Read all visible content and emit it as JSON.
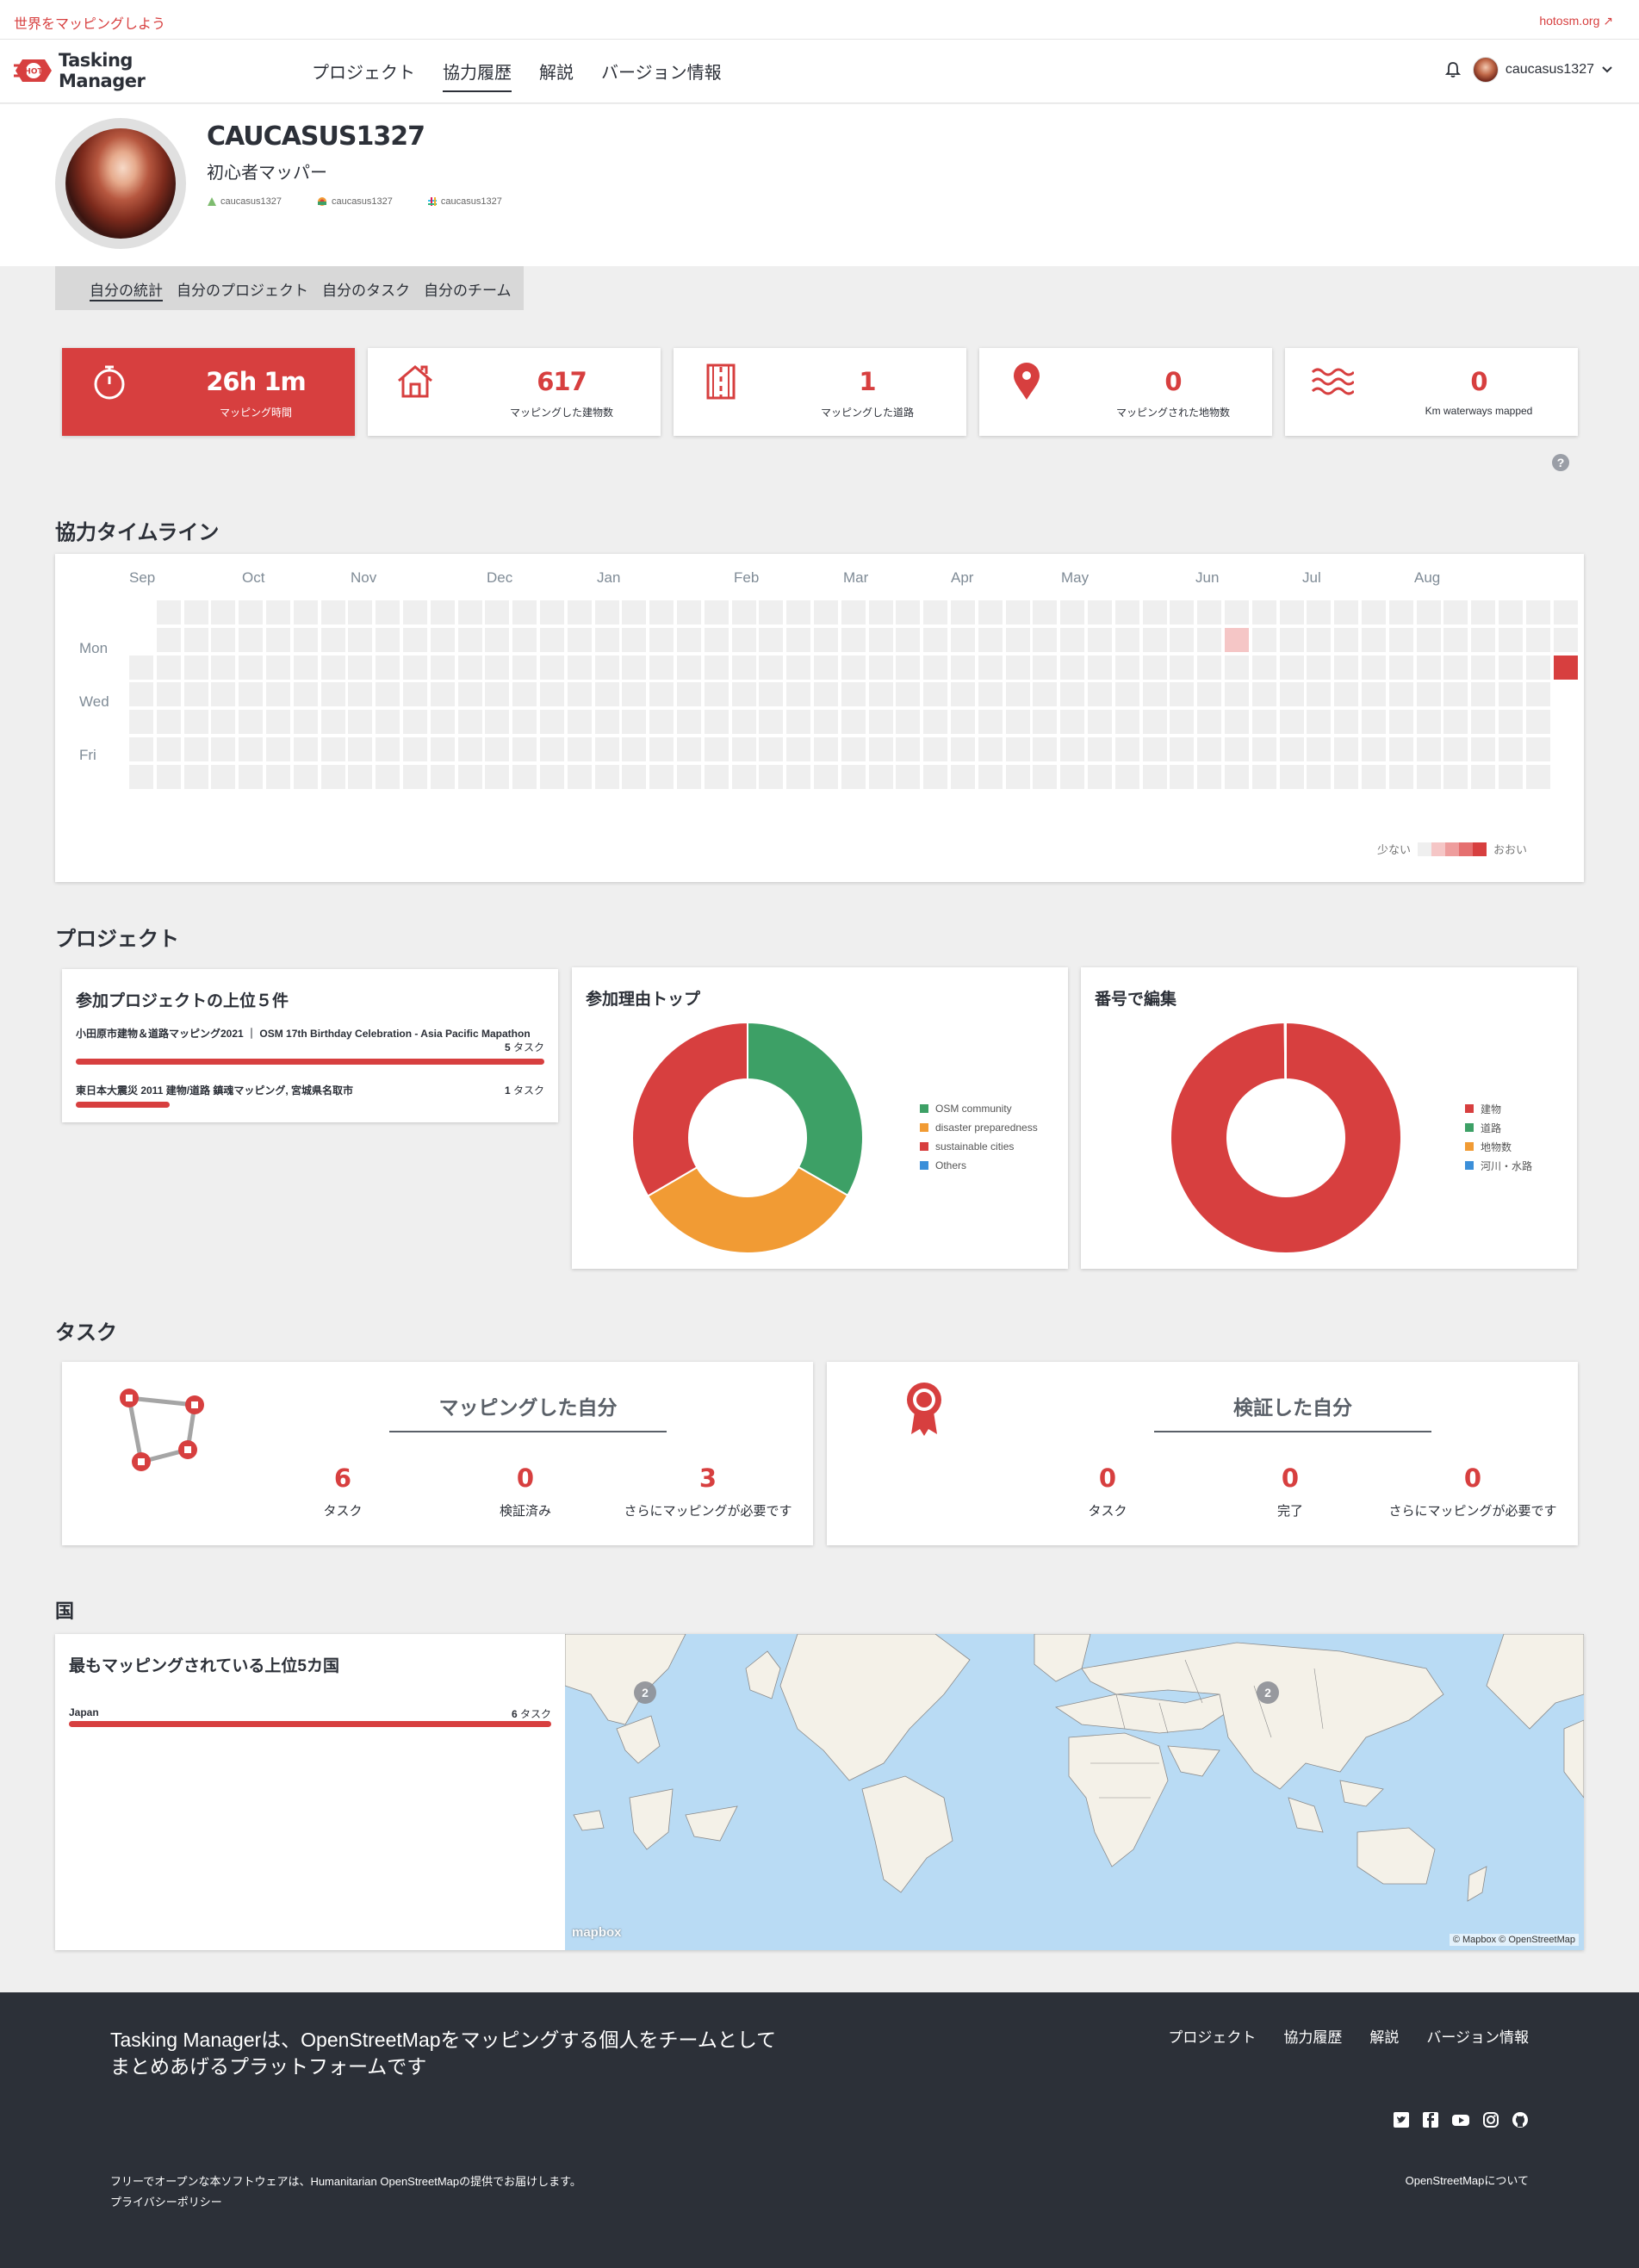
{
  "topbar": {
    "left_link": "世界をマッピングしよう",
    "right_link": "hotosm.org"
  },
  "nav": {
    "logo_text": "Tasking Manager",
    "logo_badge": "HOT",
    "menu": [
      "プロジェクト",
      "協力履歴",
      "解説",
      "バージョン情報"
    ],
    "active_menu": "協力履歴",
    "username": "caucasus1327"
  },
  "profile": {
    "name": "CAUCASUS1327",
    "level": "初心者マッパー",
    "links": [
      "caucasus1327",
      "caucasus1327",
      "caucasus1327"
    ]
  },
  "subtabs": [
    "自分の統計",
    "自分のプロジェクト",
    "自分のタスク",
    "自分のチーム"
  ],
  "stats": [
    {
      "value": "26h 1m",
      "label": "マッピング時間",
      "icon": "stopwatch-icon"
    },
    {
      "value": "617",
      "label": "マッピングした建物数",
      "icon": "house-icon"
    },
    {
      "value": "1",
      "label": "マッピングした道路",
      "icon": "road-icon"
    },
    {
      "value": "0",
      "label": "マッピングされた地物数",
      "icon": "map-pin-icon"
    },
    {
      "value": "0",
      "label": "Km waterways mapped",
      "icon": "waves-icon"
    }
  ],
  "help": "?",
  "timeline": {
    "title": "協力タイムライン",
    "months": [
      "Sep",
      "Oct",
      "Nov",
      "Dec",
      "Jan",
      "Feb",
      "Mar",
      "Apr",
      "May",
      "Jun",
      "Jul",
      "Aug"
    ],
    "days": [
      "Mon",
      "Wed",
      "Fri"
    ],
    "legend_less": "少ない",
    "legend_more": "おおい",
    "colors": [
      "#efefef",
      "#f5c6c6",
      "#ee9d9d",
      "#e56f6f",
      "#d73f3f"
    ]
  },
  "projects": {
    "title": "プロジェクト",
    "top5_title": "参加プロジェクトの上位５件",
    "top5": [
      {
        "name": "小田原市建物＆道路マッピング2021 ｜ OSM 17th Birthday Celebration - Asia Pacific Mapathon",
        "count": "5",
        "unit": "タスク",
        "fraction": 1.0
      },
      {
        "name": "東日本大震災 2011 建物/道路 鎮魂マッピング, 宮城県名取市",
        "count": "1",
        "unit": "タスク",
        "fraction": 0.2
      }
    ],
    "reasons_title": "参加理由トップ",
    "reasons": [
      {
        "name": "OSM community",
        "value": 33.3,
        "color": "#3da066"
      },
      {
        "name": "disaster preparedness",
        "value": 33.3,
        "color": "#f19b34"
      },
      {
        "name": "sustainable cities",
        "value": 33.4,
        "color": "#d73f3f"
      },
      {
        "name": "Others",
        "value": 0,
        "color": "#3b8fd9"
      }
    ],
    "edits_title": "番号で編集",
    "edits": [
      {
        "name": "建物",
        "value": 617,
        "color": "#d73f3f"
      },
      {
        "name": "道路",
        "value": 1,
        "color": "#3da066"
      },
      {
        "name": "地物数",
        "value": 0,
        "color": "#f19b34"
      },
      {
        "name": "河川・水路",
        "value": 0,
        "color": "#3b8fd9"
      }
    ]
  },
  "tasks": {
    "title": "タスク",
    "mapped": {
      "title": "マッピングした自分",
      "stats": [
        {
          "value": "6",
          "label": "タスク"
        },
        {
          "value": "0",
          "label": "検証済み"
        },
        {
          "value": "3",
          "label": "さらにマッピングが必要です"
        }
      ]
    },
    "validated": {
      "title": "検証した自分",
      "stats": [
        {
          "value": "0",
          "label": "タスク"
        },
        {
          "value": "0",
          "label": "完了"
        },
        {
          "value": "0",
          "label": "さらにマッピングが必要です"
        }
      ]
    }
  },
  "countries": {
    "title": "国",
    "card_title": "最もマッピングされている上位5カ国",
    "list": [
      {
        "name": "Japan",
        "count": "6",
        "unit": "タスク",
        "fraction": 1.0
      }
    ],
    "map_markers": [
      "2",
      "2"
    ],
    "map_logo": "mapbox",
    "map_attribution": "© Mapbox © OpenStreetMap"
  },
  "footer": {
    "tagline_1": "Tasking Managerは、OpenStreetMapをマッピングする個人をチームとして",
    "tagline_2": "まとめあげるプラットフォームです",
    "menu": [
      "プロジェクト",
      "協力履歴",
      "解説",
      "バージョン情報"
    ],
    "social": [
      "twitter-icon",
      "facebook-icon",
      "youtube-icon",
      "instagram-icon",
      "github-icon"
    ],
    "note": "フリーでオープンな本ソフトウェアは、Humanitarian OpenStreetMapの提供でお届けします。",
    "privacy": "プライバシーポリシー",
    "about": "OpenStreetMapについて"
  }
}
